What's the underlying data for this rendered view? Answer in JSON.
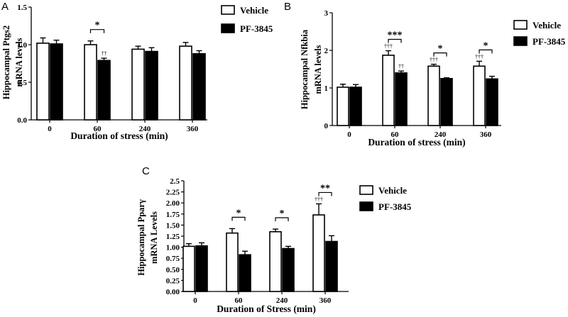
{
  "chart_data": [
    {
      "type": "bar",
      "panel": "A",
      "categories": [
        "0",
        "60",
        "240",
        "360"
      ],
      "series": [
        {
          "name": "Vehicle",
          "values": [
            1.02,
            1.0,
            0.94,
            0.98
          ],
          "errors": [
            0.07,
            0.05,
            0.04,
            0.05
          ],
          "color": "#ffffff"
        },
        {
          "name": "PF-3845",
          "values": [
            1.01,
            0.79,
            0.91,
            0.88
          ],
          "errors": [
            0.05,
            0.03,
            0.05,
            0.04
          ],
          "color": "#000000"
        }
      ],
      "xlabel": "Duration of stress (min)",
      "ylabel": [
        "Hippocampal Ptgs2",
        "mRNA levels"
      ],
      "ylim": [
        0,
        1.5
      ],
      "yticks": [
        "0.0",
        "0.5",
        "1.0",
        "1.5"
      ],
      "significance": [
        {
          "category": 1,
          "text": "*"
        }
      ],
      "vs_zero_marks": [
        {
          "category": 1,
          "series": 1,
          "text": "††"
        }
      ],
      "legend_position": "top-right",
      "grid": false
    },
    {
      "type": "bar",
      "panel": "B",
      "categories": [
        "0",
        "60",
        "240",
        "360"
      ],
      "series": [
        {
          "name": "Vehicle",
          "values": [
            1.02,
            1.87,
            1.58,
            1.58
          ],
          "errors": [
            0.08,
            0.12,
            0.05,
            0.13
          ],
          "color": "#ffffff"
        },
        {
          "name": "PF-3845",
          "values": [
            1.02,
            1.4,
            1.25,
            1.24
          ],
          "errors": [
            0.07,
            0.05,
            0.02,
            0.07
          ],
          "color": "#000000"
        }
      ],
      "xlabel": "Duration of stress (min)",
      "ylabel": [
        "Hippocampal Nfkbia",
        "mRNA levels"
      ],
      "ylim": [
        0,
        3
      ],
      "yticks": [
        "0",
        "1",
        "2",
        "3"
      ],
      "significance": [
        {
          "category": 1,
          "text": "***"
        },
        {
          "category": 2,
          "text": "*"
        },
        {
          "category": 3,
          "text": "*"
        }
      ],
      "vs_zero_marks": [
        {
          "category": 1,
          "series": 0,
          "text": "†††"
        },
        {
          "category": 1,
          "series": 1,
          "text": "††"
        },
        {
          "category": 2,
          "series": 0,
          "text": "†††"
        },
        {
          "category": 3,
          "series": 0,
          "text": "†††"
        }
      ],
      "legend_position": "top-right",
      "grid": false
    },
    {
      "type": "bar",
      "panel": "C",
      "categories": [
        "0",
        "60",
        "240",
        "360"
      ],
      "series": [
        {
          "name": "Vehicle",
          "values": [
            1.02,
            1.32,
            1.35,
            1.73
          ],
          "errors": [
            0.06,
            0.1,
            0.06,
            0.25
          ],
          "color": "#ffffff"
        },
        {
          "name": "PF-3845",
          "values": [
            1.03,
            0.83,
            0.97,
            1.13
          ],
          "errors": [
            0.07,
            0.08,
            0.05,
            0.13
          ],
          "color": "#000000"
        }
      ],
      "xlabel": "Duration of Stress (min)",
      "ylabel": [
        "Hippocampal Pparγ",
        "mRNA Levels"
      ],
      "ylim": [
        0,
        2.5
      ],
      "yticks": [
        "0.00",
        "0.25",
        "0.50",
        "0.75",
        "1.00",
        "1.25",
        "1.50",
        "1.75",
        "2.00",
        "2.25",
        "2.5"
      ],
      "significance": [
        {
          "category": 1,
          "text": "*"
        },
        {
          "category": 2,
          "text": "*"
        },
        {
          "category": 3,
          "text": "**"
        }
      ],
      "vs_zero_marks": [
        {
          "category": 3,
          "series": 0,
          "text": "†††"
        }
      ],
      "legend_position": "top-right",
      "grid": false
    }
  ]
}
